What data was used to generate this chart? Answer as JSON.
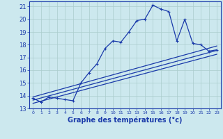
{
  "xlabel": "Graphe des températures (°c)",
  "background_color": "#cce8ee",
  "line_color": "#1a3aaa",
  "grid_color": "#aacccc",
  "xlim": [
    -0.5,
    23.5
  ],
  "ylim": [
    13,
    21.4
  ],
  "yticks": [
    13,
    14,
    15,
    16,
    17,
    18,
    19,
    20,
    21
  ],
  "xticks": [
    0,
    1,
    2,
    3,
    4,
    5,
    6,
    7,
    8,
    9,
    10,
    11,
    12,
    13,
    14,
    15,
    16,
    17,
    18,
    19,
    20,
    21,
    22,
    23
  ],
  "curve1_x": [
    0,
    1,
    2,
    3,
    4,
    5,
    6,
    7,
    8,
    9,
    10,
    11,
    12,
    13,
    14,
    15,
    16,
    17,
    18,
    19,
    20,
    21,
    22,
    23
  ],
  "curve1_y": [
    13.8,
    13.5,
    13.9,
    13.8,
    13.7,
    13.6,
    15.0,
    15.8,
    16.5,
    17.7,
    18.3,
    18.2,
    19.0,
    19.9,
    20.0,
    21.1,
    20.8,
    20.6,
    18.3,
    20.0,
    18.1,
    18.0,
    17.5,
    17.6
  ],
  "curve2_x": [
    0,
    23
  ],
  "curve2_y": [
    13.9,
    17.9
  ],
  "curve3_x": [
    0,
    23
  ],
  "curve3_y": [
    13.65,
    17.55
  ],
  "curve4_x": [
    0,
    23
  ],
  "curve4_y": [
    13.4,
    17.25
  ]
}
